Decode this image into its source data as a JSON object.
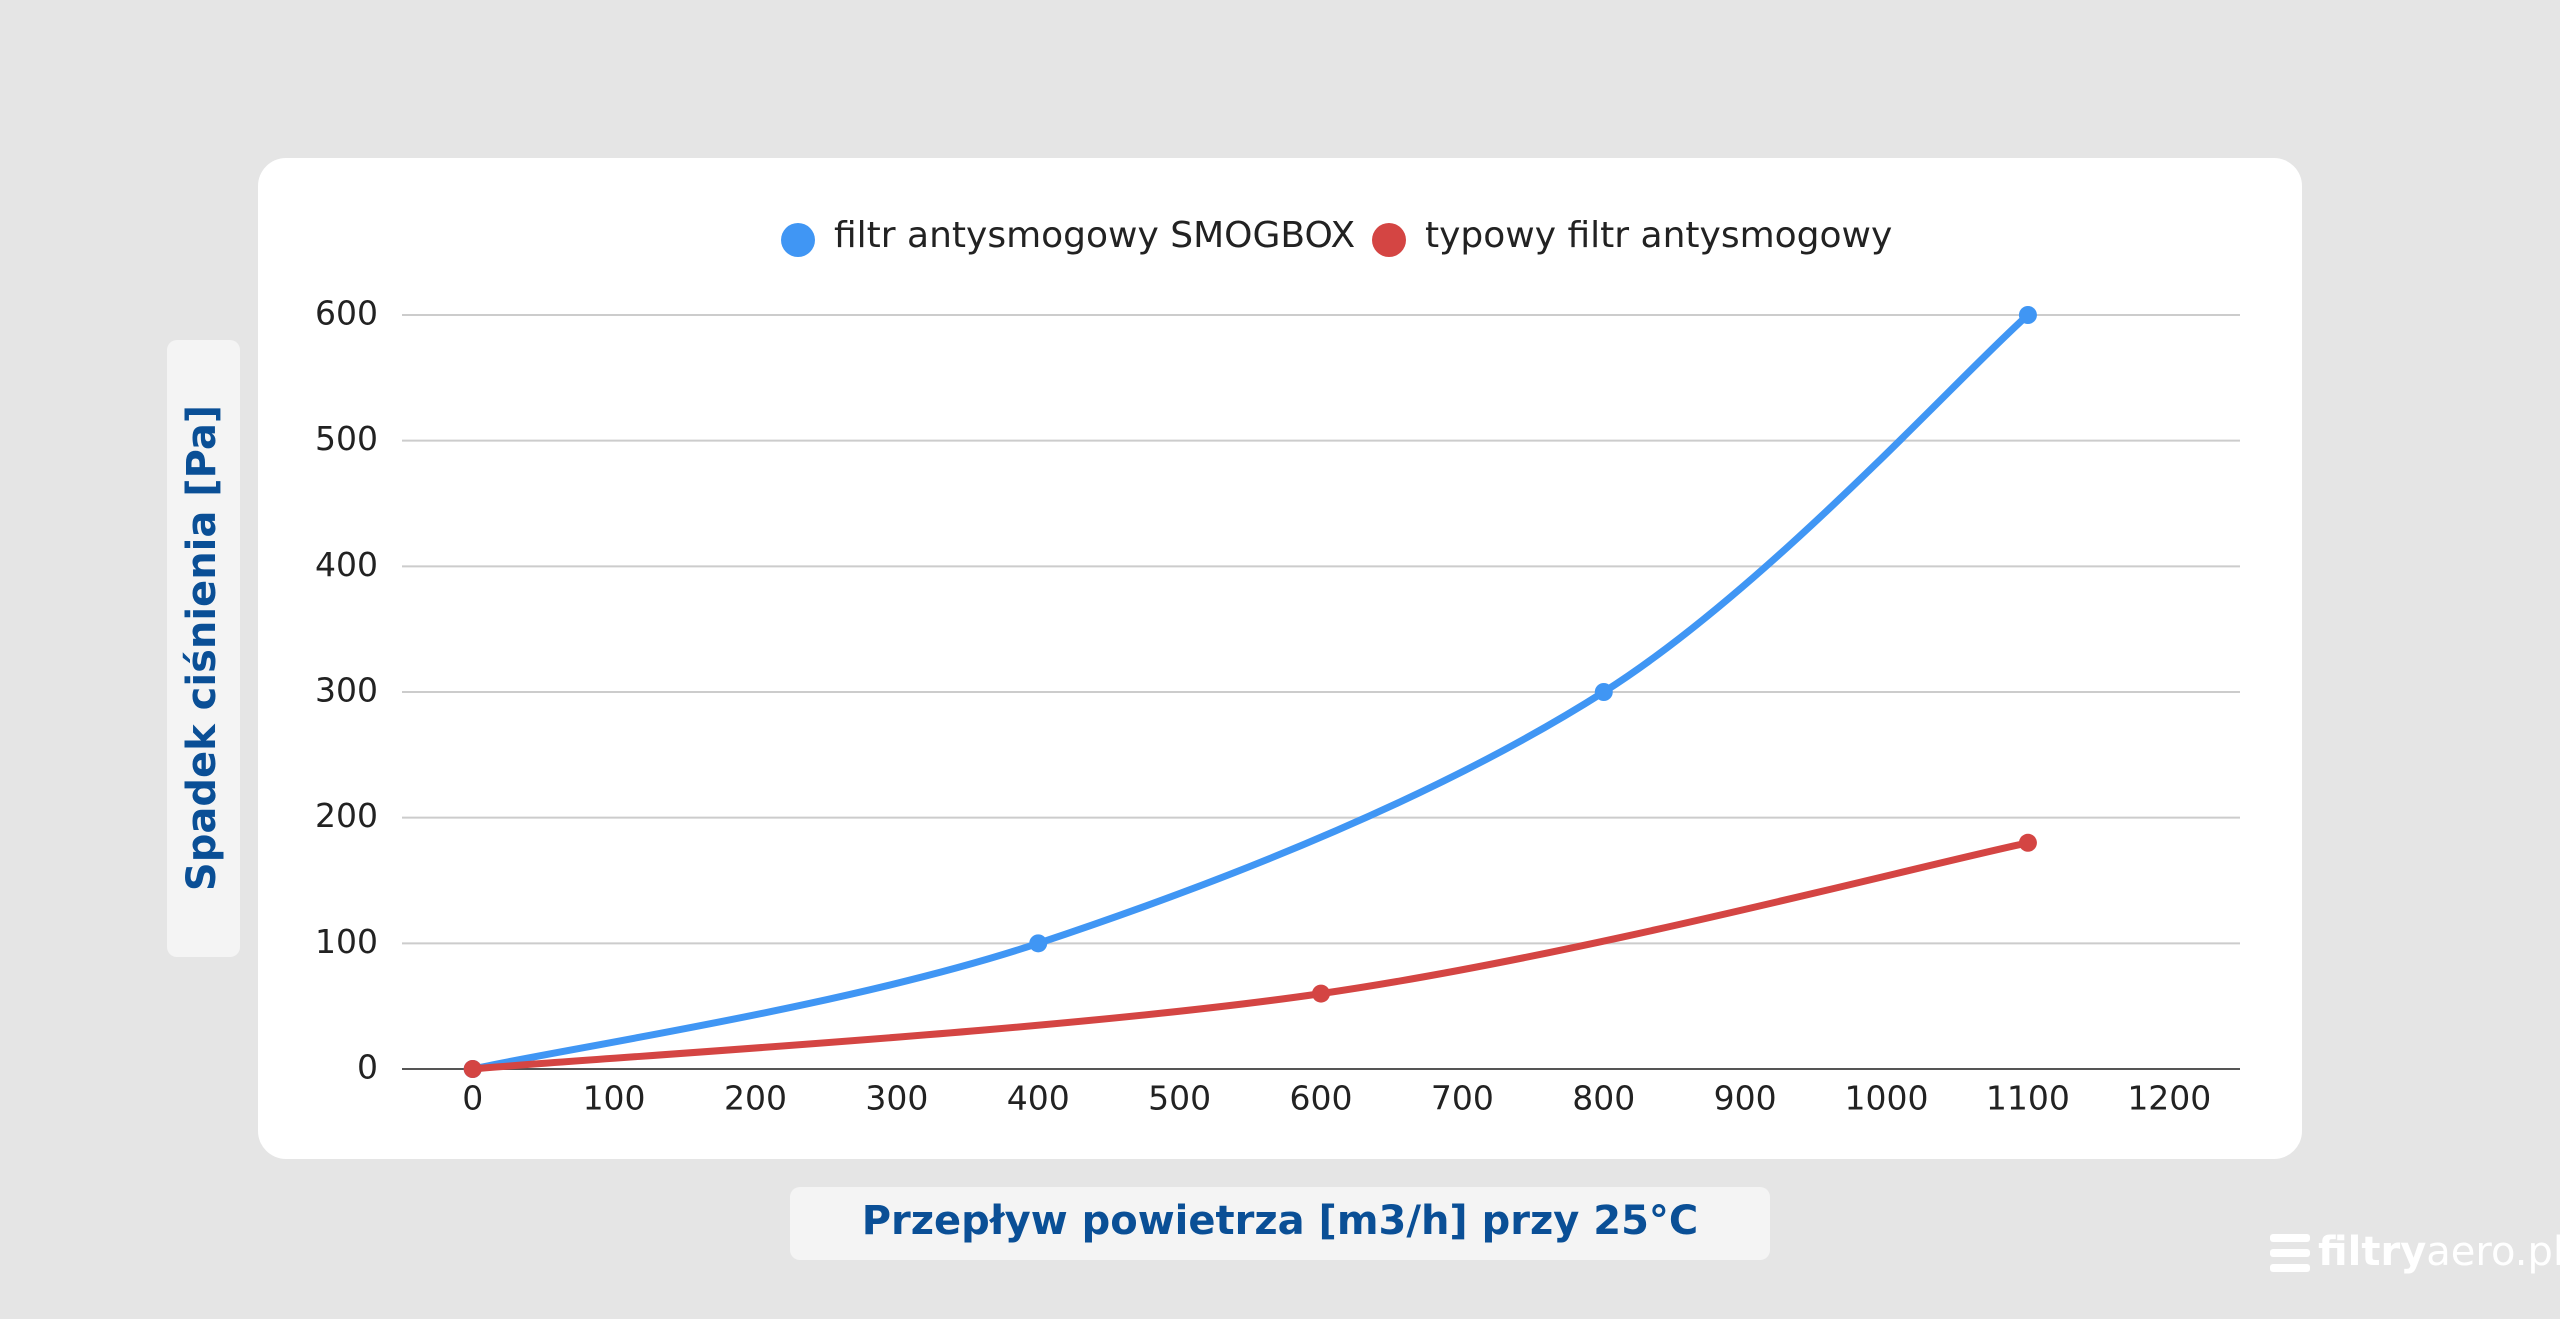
{
  "chart_data": {
    "type": "line",
    "smooth": true,
    "y_label": "Spadek ciśnienia [Pa]",
    "x_label": "Przepływ powietrza [m3/h] przy 25°C",
    "series": [
      {
        "name": "filtr antysmogowy SMOGBOX",
        "color": "#4096f4",
        "x": [
          0,
          400,
          800,
          1100
        ],
        "values": [
          0,
          100,
          300,
          600
        ]
      },
      {
        "name": "typowy filtr antysmogowy",
        "color": "#d44543",
        "x": [
          0,
          600,
          1100
        ],
        "values": [
          0,
          60,
          180
        ]
      }
    ],
    "xlim": [
      -50,
      1250
    ],
    "xticks": [
      0,
      100,
      200,
      300,
      400,
      500,
      600,
      700,
      800,
      900,
      1000,
      1100,
      1200
    ],
    "ylim": [
      0,
      600
    ],
    "yticks": [
      0,
      100,
      200,
      300,
      400,
      500,
      600
    ],
    "grid": true,
    "legend": "top"
  },
  "brand": {
    "bold": "filtry",
    "light": "aero.pl"
  }
}
